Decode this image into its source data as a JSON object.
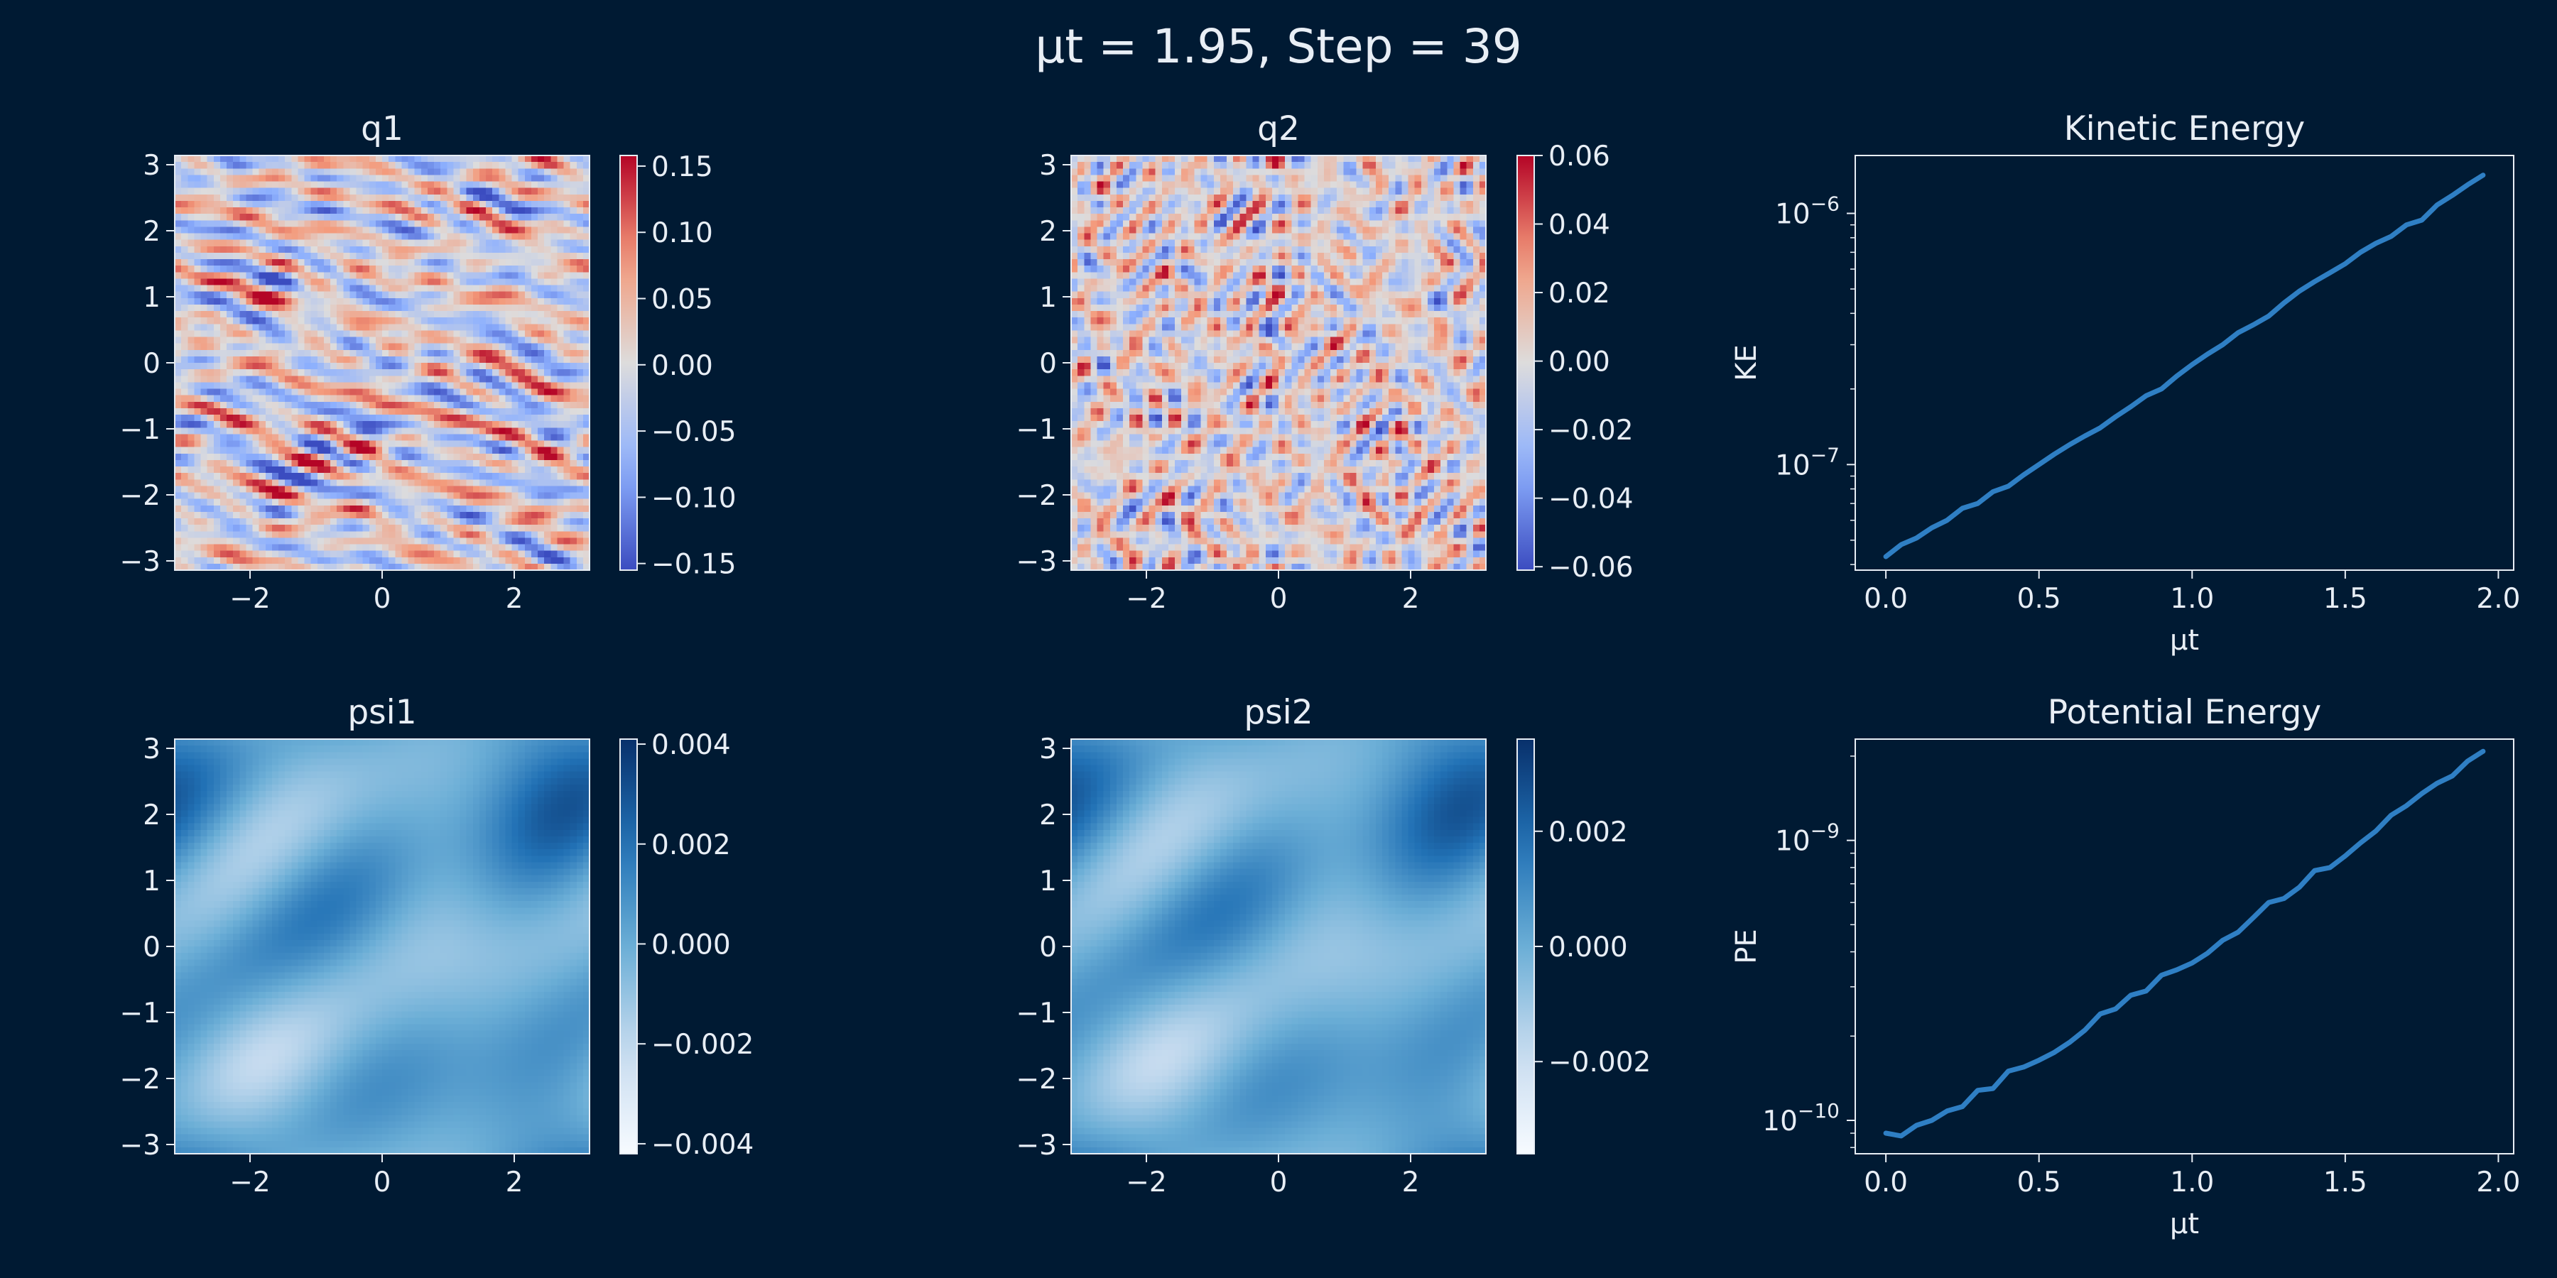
{
  "suptitle": "μt = 1.95, Step = 39",
  "colors": {
    "background": "#001a33",
    "foreground": "#e8eef5",
    "line": "#2f7fc4"
  },
  "chart_data": [
    {
      "type": "heatmap",
      "title": "q1",
      "xlim": [
        -3.14,
        3.14
      ],
      "ylim": [
        -3.14,
        3.14
      ],
      "xticks": [
        -2,
        0,
        2
      ],
      "yticks": [
        -3,
        -2,
        -1,
        0,
        1,
        2,
        3
      ],
      "colormap": "coolwarm",
      "clim": [
        -0.155,
        0.158
      ],
      "colorbar_ticks": [
        0.15,
        0.1,
        0.05,
        0.0,
        -0.05,
        -0.1,
        -0.15
      ],
      "colorbar_ticklabels": [
        "0.15",
        "0.10",
        "0.05",
        "0.00",
        "−0.05",
        "−0.10",
        "−0.15"
      ]
    },
    {
      "type": "heatmap",
      "title": "q2",
      "xlim": [
        -3.14,
        3.14
      ],
      "ylim": [
        -3.14,
        3.14
      ],
      "xticks": [
        -2,
        0,
        2
      ],
      "yticks": [
        -3,
        -2,
        -1,
        0,
        1,
        2,
        3
      ],
      "colormap": "coolwarm",
      "clim": [
        -0.061,
        0.06
      ],
      "colorbar_ticks": [
        0.06,
        0.04,
        0.02,
        0.0,
        -0.02,
        -0.04,
        -0.06
      ],
      "colorbar_ticklabels": [
        "0.06",
        "0.04",
        "0.02",
        "0.00",
        "−0.02",
        "−0.04",
        "−0.06"
      ]
    },
    {
      "type": "line",
      "title": "Kinetic Energy",
      "xlabel": "μt",
      "ylabel": "KE",
      "yscale": "log",
      "xlim": [
        -0.1,
        2.05
      ],
      "ylim": [
        3.8e-08,
        1.7e-06
      ],
      "xticks": [
        0.0,
        0.5,
        1.0,
        1.5,
        2.0
      ],
      "xticklabels": [
        "0.0",
        "0.5",
        "1.0",
        "1.5",
        "2.0"
      ],
      "yticks": [
        1e-06,
        1e-07
      ],
      "yticklabels": [
        {
          "base": "10",
          "exp": "−6"
        },
        {
          "base": "10",
          "exp": "−7"
        }
      ],
      "x": [
        0.0,
        0.05,
        0.1,
        0.15,
        0.2,
        0.25,
        0.3,
        0.35,
        0.4,
        0.45,
        0.5,
        0.55,
        0.6,
        0.65,
        0.7,
        0.75,
        0.8,
        0.85,
        0.9,
        0.95,
        1.0,
        1.05,
        1.1,
        1.15,
        1.2,
        1.25,
        1.3,
        1.35,
        1.4,
        1.45,
        1.5,
        1.55,
        1.6,
        1.65,
        1.7,
        1.75,
        1.8,
        1.85,
        1.9,
        1.95
      ],
      "series": [
        {
          "values": [
            4.3e-08,
            4.8e-08,
            5.1e-08,
            5.6e-08,
            6e-08,
            6.7e-08,
            7e-08,
            7.8e-08,
            8.2e-08,
            9.1e-08,
            1e-07,
            1.1e-07,
            1.2e-07,
            1.3e-07,
            1.4e-07,
            1.55e-07,
            1.7e-07,
            1.88e-07,
            2e-07,
            2.25e-07,
            2.5e-07,
            2.75e-07,
            3e-07,
            3.35e-07,
            3.6e-07,
            3.9e-07,
            4.4e-07,
            4.9e-07,
            5.35e-07,
            5.8e-07,
            6.3e-07,
            7e-07,
            7.6e-07,
            8.1e-07,
            9e-07,
            9.4e-07,
            1.08e-06,
            1.18e-06,
            1.3e-06,
            1.42e-06
          ]
        }
      ]
    },
    {
      "type": "heatmap",
      "title": "psi1",
      "xlim": [
        -3.14,
        3.14
      ],
      "ylim": [
        -3.14,
        3.14
      ],
      "xticks": [
        -2,
        0,
        2
      ],
      "yticks": [
        -3,
        -2,
        -1,
        0,
        1,
        2,
        3
      ],
      "colormap": "Blues",
      "clim": [
        -0.0042,
        0.0041
      ],
      "colorbar_ticks": [
        0.004,
        0.002,
        0.0,
        -0.002,
        -0.004
      ],
      "colorbar_ticklabels": [
        "0.004",
        "0.002",
        "0.000",
        "−0.002",
        "−0.004"
      ]
    },
    {
      "type": "heatmap",
      "title": "psi2",
      "xlim": [
        -3.14,
        3.14
      ],
      "ylim": [
        -3.14,
        3.14
      ],
      "xticks": [
        -2,
        0,
        2
      ],
      "yticks": [
        -3,
        -2,
        -1,
        0,
        1,
        2,
        3
      ],
      "colormap": "Blues",
      "clim": [
        -0.0036,
        0.0036
      ],
      "colorbar_ticks": [
        0.002,
        0.0,
        -0.002
      ],
      "colorbar_ticklabels": [
        "0.002",
        "0.000",
        "−0.002"
      ]
    },
    {
      "type": "line",
      "title": "Potential Energy",
      "xlabel": "μt",
      "ylabel": "PE",
      "yscale": "log",
      "xlim": [
        -0.1,
        2.05
      ],
      "ylim": [
        7.6e-11,
        2.3e-09
      ],
      "xticks": [
        0.0,
        0.5,
        1.0,
        1.5,
        2.0
      ],
      "xticklabels": [
        "0.0",
        "0.5",
        "1.0",
        "1.5",
        "2.0"
      ],
      "yticks": [
        1e-09,
        1e-10
      ],
      "yticklabels": [
        {
          "base": "10",
          "exp": "−9"
        },
        {
          "base": "10",
          "exp": "−10"
        }
      ],
      "x": [
        0.0,
        0.05,
        0.1,
        0.15,
        0.2,
        0.25,
        0.3,
        0.35,
        0.4,
        0.45,
        0.5,
        0.55,
        0.6,
        0.65,
        0.7,
        0.75,
        0.8,
        0.85,
        0.9,
        0.95,
        1.0,
        1.05,
        1.1,
        1.15,
        1.2,
        1.25,
        1.3,
        1.35,
        1.4,
        1.45,
        1.5,
        1.55,
        1.6,
        1.65,
        1.7,
        1.75,
        1.8,
        1.85,
        1.9,
        1.95
      ],
      "series": [
        {
          "values": [
            9e-11,
            8.8e-11,
            9.6e-11,
            1e-10,
            1.08e-10,
            1.12e-10,
            1.28e-10,
            1.3e-10,
            1.5e-10,
            1.55e-10,
            1.64e-10,
            1.75e-10,
            1.9e-10,
            2.1e-10,
            2.4e-10,
            2.5e-10,
            2.8e-10,
            2.9e-10,
            3.3e-10,
            3.45e-10,
            3.65e-10,
            3.95e-10,
            4.4e-10,
            4.7e-10,
            5.3e-10,
            6e-10,
            6.2e-10,
            6.8e-10,
            7.8e-10,
            8e-10,
            8.8e-10,
            9.8e-10,
            1.08e-09,
            1.23e-09,
            1.33e-09,
            1.47e-09,
            1.6e-09,
            1.7e-09,
            1.92e-09,
            2.08e-09
          ]
        }
      ]
    }
  ]
}
